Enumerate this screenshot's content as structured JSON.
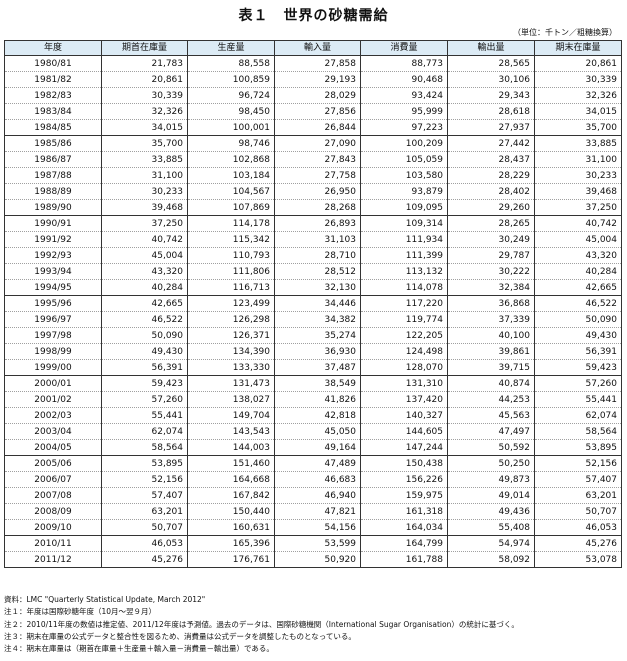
{
  "title": "表１　世界の砂糖需給",
  "unit": "（単位：千トン／粗糖換算）",
  "columns": [
    "年度",
    "期首在庫量",
    "生産量",
    "輸入量",
    "消費量",
    "輸出量",
    "期末在庫量"
  ],
  "rows": [
    [
      "1980/81",
      "21,783",
      "88,558",
      "27,858",
      "88,773",
      "28,565",
      "20,861"
    ],
    [
      "1981/82",
      "20,861",
      "100,859",
      "29,193",
      "90,468",
      "30,106",
      "30,339"
    ],
    [
      "1982/83",
      "30,339",
      "96,724",
      "28,029",
      "93,424",
      "29,343",
      "32,326"
    ],
    [
      "1983/84",
      "32,326",
      "98,450",
      "27,856",
      "95,999",
      "28,618",
      "34,015"
    ],
    [
      "1984/85",
      "34,015",
      "100,001",
      "26,844",
      "97,223",
      "27,937",
      "35,700"
    ],
    [
      "1985/86",
      "35,700",
      "98,746",
      "27,090",
      "100,209",
      "27,442",
      "33,885"
    ],
    [
      "1986/87",
      "33,885",
      "102,868",
      "27,843",
      "105,059",
      "28,437",
      "31,100"
    ],
    [
      "1987/88",
      "31,100",
      "103,184",
      "27,758",
      "103,580",
      "28,229",
      "30,233"
    ],
    [
      "1988/89",
      "30,233",
      "104,567",
      "26,950",
      "93,879",
      "28,402",
      "39,468"
    ],
    [
      "1989/90",
      "39,468",
      "107,869",
      "28,268",
      "109,095",
      "29,260",
      "37,250"
    ],
    [
      "1990/91",
      "37,250",
      "114,178",
      "26,893",
      "109,314",
      "28,265",
      "40,742"
    ],
    [
      "1991/92",
      "40,742",
      "115,342",
      "31,103",
      "111,934",
      "30,249",
      "45,004"
    ],
    [
      "1992/93",
      "45,004",
      "110,793",
      "28,710",
      "111,399",
      "29,787",
      "43,320"
    ],
    [
      "1993/94",
      "43,320",
      "111,806",
      "28,512",
      "113,132",
      "30,222",
      "40,284"
    ],
    [
      "1994/95",
      "40,284",
      "116,713",
      "32,130",
      "114,078",
      "32,384",
      "42,665"
    ],
    [
      "1995/96",
      "42,665",
      "123,499",
      "34,446",
      "117,220",
      "36,868",
      "46,522"
    ],
    [
      "1996/97",
      "46,522",
      "126,298",
      "34,382",
      "119,774",
      "37,339",
      "50,090"
    ],
    [
      "1997/98",
      "50,090",
      "126,371",
      "35,274",
      "122,205",
      "40,100",
      "49,430"
    ],
    [
      "1998/99",
      "49,430",
      "134,390",
      "36,930",
      "124,498",
      "39,861",
      "56,391"
    ],
    [
      "1999/00",
      "56,391",
      "133,330",
      "37,487",
      "128,070",
      "39,715",
      "59,423"
    ],
    [
      "2000/01",
      "59,423",
      "131,473",
      "38,549",
      "131,310",
      "40,874",
      "57,260"
    ],
    [
      "2001/02",
      "57,260",
      "138,027",
      "41,826",
      "137,420",
      "44,253",
      "55,441"
    ],
    [
      "2002/03",
      "55,441",
      "149,704",
      "42,818",
      "140,327",
      "45,563",
      "62,074"
    ],
    [
      "2003/04",
      "62,074",
      "143,543",
      "45,050",
      "144,605",
      "47,497",
      "58,564"
    ],
    [
      "2004/05",
      "58,564",
      "144,003",
      "49,164",
      "147,244",
      "50,592",
      "53,895"
    ],
    [
      "2005/06",
      "53,895",
      "151,460",
      "47,489",
      "150,438",
      "50,250",
      "52,156"
    ],
    [
      "2006/07",
      "52,156",
      "164,668",
      "46,683",
      "156,226",
      "49,873",
      "57,407"
    ],
    [
      "2007/08",
      "57,407",
      "167,842",
      "46,940",
      "159,975",
      "49,014",
      "63,201"
    ],
    [
      "2008/09",
      "63,201",
      "150,440",
      "47,821",
      "161,318",
      "49,436",
      "50,707"
    ],
    [
      "2009/10",
      "50,707",
      "160,631",
      "54,156",
      "164,034",
      "55,408",
      "46,053"
    ],
    [
      "2010/11",
      "46,053",
      "165,396",
      "53,599",
      "164,799",
      "54,974",
      "45,276"
    ],
    [
      "2011/12",
      "45,276",
      "176,761",
      "50,920",
      "161,788",
      "58,092",
      "53,078"
    ]
  ],
  "notes": [
    "資料：LMC \"Quarterly Statistical Update, March 2012\"",
    "注１：年度は国際砂糖年度（10月～翌９月）",
    "注２：2010/11年度の数値は推定値、2011/12年度は予測値。過去のデータは、国際砂糖機関（International Sugar Organisation）の統計に基づく。",
    "注３：期末在庫量の公式データと整合性を図るため、消費量は公式データを調整したものとなっている。",
    "注４：期末在庫量は（期首在庫量＋生産量＋輸入量－消費量－輸出量）である。"
  ]
}
